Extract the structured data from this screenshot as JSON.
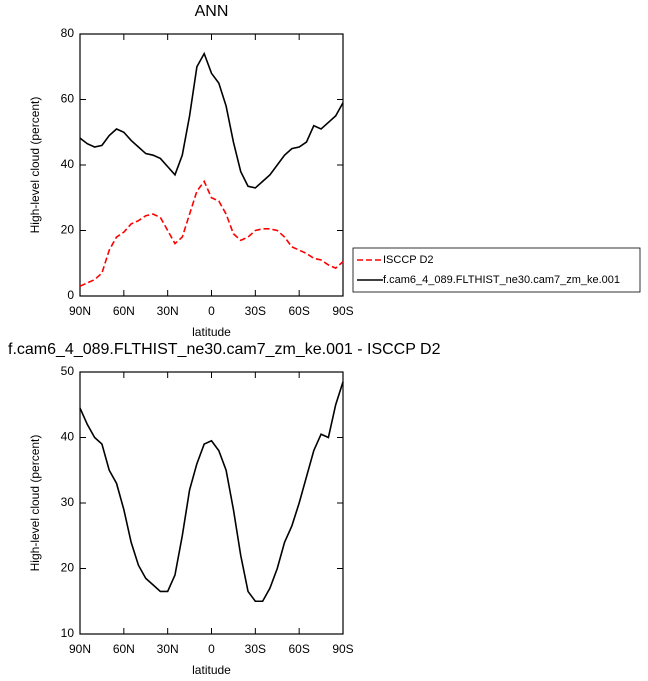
{
  "chart_data": [
    {
      "type": "line",
      "title": "ANN",
      "xlabel": "latitude",
      "ylabel": "High-level cloud (percent)",
      "x": [
        90,
        85,
        80,
        75,
        70,
        65,
        60,
        55,
        50,
        45,
        40,
        35,
        30,
        25,
        20,
        15,
        10,
        5,
        0,
        -5,
        -10,
        -15,
        -20,
        -25,
        -30,
        -35,
        -40,
        -45,
        -50,
        -55,
        -60,
        -65,
        -70,
        -75,
        -80,
        -85,
        -90
      ],
      "xlim": [
        90,
        -90
      ],
      "xticks": [
        {
          "value": 90,
          "label": "90N"
        },
        {
          "value": 60,
          "label": "60N"
        },
        {
          "value": 30,
          "label": "30N"
        },
        0,
        {
          "value": -30,
          "label": "30S"
        },
        {
          "value": -60,
          "label": "60S"
        },
        {
          "value": -90,
          "label": "90S"
        }
      ],
      "ylim": [
        0,
        80
      ],
      "yticks": [
        0,
        20,
        40,
        60,
        80
      ],
      "legend": "right",
      "series": [
        {
          "name": "ISCCP D2",
          "color": "#ff0000",
          "line_style": "dashed",
          "values": [
            3,
            4,
            5,
            7,
            14,
            18,
            19.5,
            22,
            23,
            24.5,
            25,
            24,
            20,
            16,
            18,
            25,
            32,
            35,
            30,
            29,
            25,
            19,
            17,
            18,
            20,
            20.5,
            20.5,
            20,
            18,
            15,
            14,
            13,
            11.5,
            11,
            9.5,
            8.5,
            10.5
          ]
        },
        {
          "name": "f.cam6_4_089.FLTHIST_ne30.cam7_zm_ke.001",
          "color": "#000000",
          "line_style": "solid",
          "values": [
            48.2,
            46.5,
            45.5,
            46,
            49,
            51,
            50,
            47.5,
            45.5,
            43.5,
            43,
            42,
            39.5,
            37,
            43,
            55,
            70,
            74,
            68,
            65,
            58,
            47,
            38,
            33.5,
            33,
            35,
            37,
            40,
            43,
            45,
            45.5,
            47,
            52,
            51,
            53,
            55,
            59
          ]
        }
      ]
    },
    {
      "type": "line",
      "title": "f.cam6_4_089.FLTHIST_ne30.cam7_zm_ke.001 - ISCCP D2",
      "xlabel": "latitude",
      "ylabel": "High-level cloud (percent)",
      "x": [
        90,
        85,
        80,
        75,
        70,
        65,
        60,
        55,
        50,
        45,
        40,
        35,
        30,
        25,
        20,
        15,
        10,
        5,
        0,
        -5,
        -10,
        -15,
        -20,
        -25,
        -30,
        -35,
        -40,
        -45,
        -50,
        -55,
        -60,
        -65,
        -70,
        -75,
        -80,
        -85,
        -90
      ],
      "xlim": [
        90,
        -90
      ],
      "xticks": [
        {
          "value": 90,
          "label": "90N"
        },
        {
          "value": 60,
          "label": "60N"
        },
        {
          "value": 30,
          "label": "30N"
        },
        0,
        {
          "value": -30,
          "label": "30S"
        },
        {
          "value": -60,
          "label": "60S"
        },
        {
          "value": -90,
          "label": "90S"
        }
      ],
      "ylim": [
        10,
        50
      ],
      "yticks": [
        10,
        20,
        30,
        40,
        50
      ],
      "color": "#000000",
      "values": [
        44.5,
        42,
        40,
        39,
        35,
        33,
        29,
        24,
        20.5,
        18.5,
        17.5,
        16.5,
        16.5,
        19,
        25,
        32,
        36,
        39,
        39.5,
        38,
        35,
        29,
        22,
        16.5,
        15,
        15,
        17,
        20,
        24,
        26.5,
        30,
        34,
        38,
        40.5,
        40,
        45,
        48.5
      ]
    }
  ]
}
